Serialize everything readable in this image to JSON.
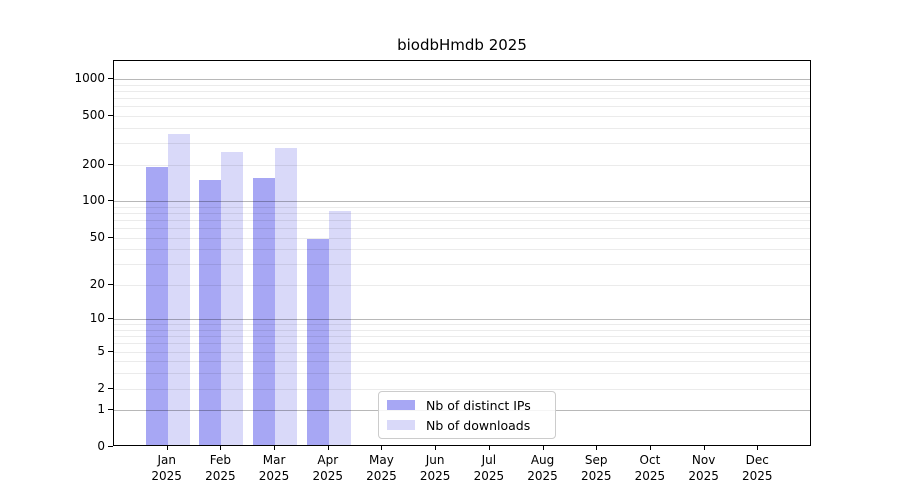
{
  "chart_data": {
    "type": "bar",
    "title": "biodbHmdb 2025",
    "year": "2025",
    "months": [
      "Jan",
      "Feb",
      "Mar",
      "Apr",
      "May",
      "Jun",
      "Jul",
      "Aug",
      "Sep",
      "Oct",
      "Nov",
      "Dec"
    ],
    "series": [
      {
        "name": "Nb of distinct IPs",
        "color": "#a7a7f4",
        "values": [
          185,
          145,
          150,
          47,
          null,
          null,
          null,
          null,
          null,
          null,
          null,
          null
        ]
      },
      {
        "name": "Nb of downloads",
        "color": "#d9d9f9",
        "values": [
          340,
          245,
          265,
          80,
          null,
          null,
          null,
          null,
          null,
          null,
          null,
          null
        ]
      }
    ],
    "y_axis": {
      "scale": "log1p",
      "tick_values": [
        1000,
        500,
        200,
        100,
        50,
        20,
        10,
        5,
        2,
        1,
        0
      ],
      "range_max": 1400
    },
    "legend": {
      "position": "lower center",
      "entries": [
        "Nb of distinct IPs",
        "Nb of downloads"
      ]
    },
    "grid": {
      "major_at": [
        1,
        10,
        100,
        1000
      ],
      "major_color": "rgba(0,0,0,0.28)",
      "minor_color": "rgba(0,0,0,0.08)"
    }
  }
}
